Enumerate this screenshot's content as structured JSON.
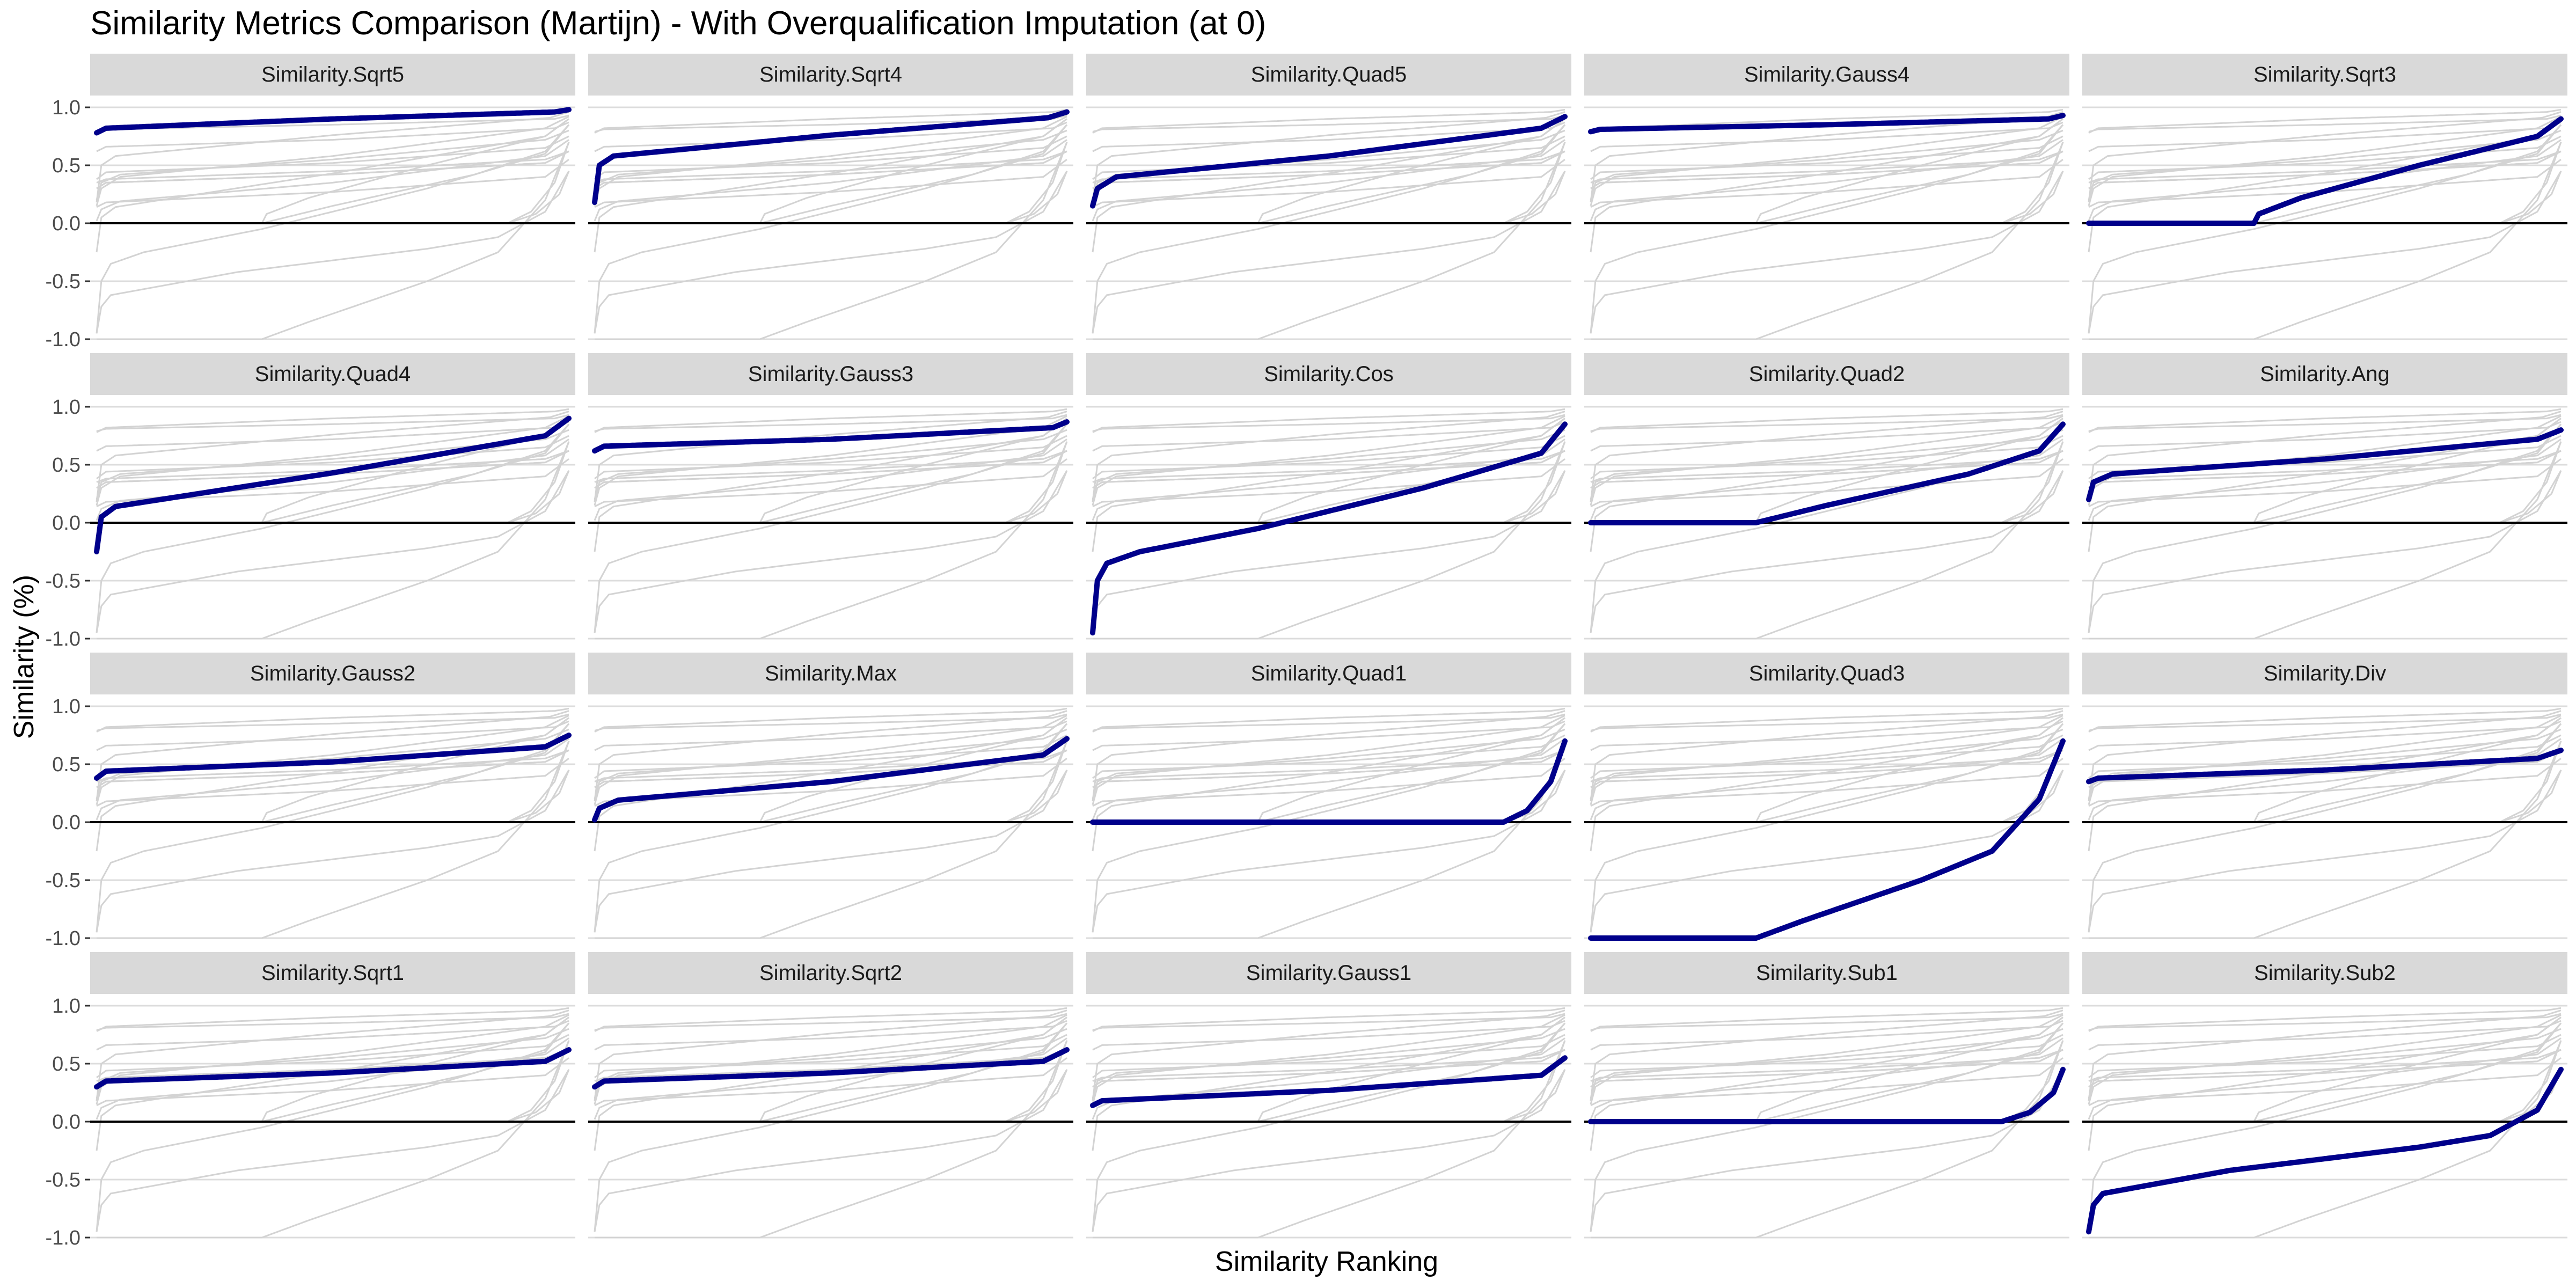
{
  "chart_data": {
    "type": "line",
    "title": "Similarity Metrics Comparison (Martijn) - With Overqualification Imputation (at 0)",
    "xlabel": "Similarity Ranking",
    "ylabel": "Similarity (%)",
    "ylim": [
      -1.0,
      1.0
    ],
    "yticks": [
      "1.0",
      "0.5",
      "0.0",
      "-0.5",
      "-1.0"
    ],
    "x_range": [
      0,
      100
    ],
    "grid": "horizontal only",
    "highlight_color": "#00008B",
    "background_color": "#D3D3D3",
    "zero_line_color": "#000000",
    "panels": [
      {
        "name": "Similarity.Sqrt5",
        "curve": [
          [
            0,
            0.78
          ],
          [
            2,
            0.82
          ],
          [
            50,
            0.9
          ],
          [
            97,
            0.96
          ],
          [
            100,
            0.98
          ]
        ]
      },
      {
        "name": "Similarity.Sqrt4",
        "curve": [
          [
            0,
            0.18
          ],
          [
            1,
            0.5
          ],
          [
            4,
            0.58
          ],
          [
            50,
            0.76
          ],
          [
            96,
            0.91
          ],
          [
            100,
            0.96
          ]
        ]
      },
      {
        "name": "Similarity.Quad5",
        "curve": [
          [
            0,
            0.15
          ],
          [
            1,
            0.3
          ],
          [
            5,
            0.4
          ],
          [
            50,
            0.58
          ],
          [
            95,
            0.82
          ],
          [
            100,
            0.92
          ]
        ]
      },
      {
        "name": "Similarity.Gauss4",
        "curve": [
          [
            0,
            0.79
          ],
          [
            2,
            0.81
          ],
          [
            50,
            0.85
          ],
          [
            97,
            0.9
          ],
          [
            100,
            0.93
          ]
        ]
      },
      {
        "name": "Similarity.Sqrt3",
        "curve": [
          [
            0,
            0.0
          ],
          [
            35,
            0.0
          ],
          [
            36,
            0.08
          ],
          [
            45,
            0.22
          ],
          [
            70,
            0.5
          ],
          [
            95,
            0.75
          ],
          [
            100,
            0.9
          ]
        ]
      },
      {
        "name": "Similarity.Quad4",
        "curve": [
          [
            0,
            -0.25
          ],
          [
            1,
            0.05
          ],
          [
            4,
            0.14
          ],
          [
            50,
            0.43
          ],
          [
            95,
            0.75
          ],
          [
            100,
            0.9
          ]
        ]
      },
      {
        "name": "Similarity.Gauss3",
        "curve": [
          [
            0,
            0.62
          ],
          [
            2,
            0.66
          ],
          [
            50,
            0.72
          ],
          [
            97,
            0.82
          ],
          [
            100,
            0.87
          ]
        ]
      },
      {
        "name": "Similarity.Cos",
        "curve": [
          [
            0,
            -0.95
          ],
          [
            1,
            -0.5
          ],
          [
            3,
            -0.35
          ],
          [
            10,
            -0.25
          ],
          [
            35,
            -0.05
          ],
          [
            70,
            0.3
          ],
          [
            95,
            0.6
          ],
          [
            100,
            0.85
          ]
        ]
      },
      {
        "name": "Similarity.Quad2",
        "curve": [
          [
            0,
            0.0
          ],
          [
            35,
            0.0
          ],
          [
            50,
            0.15
          ],
          [
            80,
            0.42
          ],
          [
            95,
            0.62
          ],
          [
            100,
            0.85
          ]
        ]
      },
      {
        "name": "Similarity.Ang",
        "curve": [
          [
            0,
            0.2
          ],
          [
            1,
            0.35
          ],
          [
            5,
            0.42
          ],
          [
            50,
            0.55
          ],
          [
            95,
            0.72
          ],
          [
            100,
            0.8
          ]
        ]
      },
      {
        "name": "Similarity.Gauss2",
        "curve": [
          [
            0,
            0.38
          ],
          [
            2,
            0.44
          ],
          [
            50,
            0.52
          ],
          [
            95,
            0.65
          ],
          [
            100,
            0.75
          ]
        ]
      },
      {
        "name": "Similarity.Max",
        "curve": [
          [
            0,
            0.02
          ],
          [
            1,
            0.12
          ],
          [
            5,
            0.19
          ],
          [
            50,
            0.35
          ],
          [
            95,
            0.58
          ],
          [
            100,
            0.72
          ]
        ]
      },
      {
        "name": "Similarity.Quad1",
        "curve": [
          [
            0,
            0.0
          ],
          [
            87,
            0.0
          ],
          [
            92,
            0.1
          ],
          [
            97,
            0.35
          ],
          [
            100,
            0.7
          ]
        ]
      },
      {
        "name": "Similarity.Quad3",
        "curve": [
          [
            0,
            -1.0
          ],
          [
            35,
            -1.0
          ],
          [
            45,
            -0.85
          ],
          [
            70,
            -0.5
          ],
          [
            85,
            -0.25
          ],
          [
            95,
            0.2
          ],
          [
            100,
            0.7
          ]
        ]
      },
      {
        "name": "Similarity.Div",
        "curve": [
          [
            0,
            0.35
          ],
          [
            2,
            0.38
          ],
          [
            50,
            0.45
          ],
          [
            95,
            0.55
          ],
          [
            100,
            0.62
          ]
        ]
      },
      {
        "name": "Similarity.Sqrt1",
        "curve": [
          [
            0,
            0.3
          ],
          [
            2,
            0.35
          ],
          [
            50,
            0.42
          ],
          [
            95,
            0.52
          ],
          [
            100,
            0.62
          ]
        ]
      },
      {
        "name": "Similarity.Sqrt2",
        "curve": [
          [
            0,
            0.3
          ],
          [
            2,
            0.35
          ],
          [
            50,
            0.42
          ],
          [
            95,
            0.52
          ],
          [
            100,
            0.62
          ]
        ]
      },
      {
        "name": "Similarity.Gauss1",
        "curve": [
          [
            0,
            0.14
          ],
          [
            2,
            0.18
          ],
          [
            50,
            0.27
          ],
          [
            95,
            0.4
          ],
          [
            100,
            0.55
          ]
        ]
      },
      {
        "name": "Similarity.Sub1",
        "curve": [
          [
            0,
            0.0
          ],
          [
            87,
            0.0
          ],
          [
            93,
            0.08
          ],
          [
            98,
            0.25
          ],
          [
            100,
            0.45
          ]
        ]
      },
      {
        "name": "Similarity.Sub2",
        "curve": [
          [
            0,
            -0.95
          ],
          [
            1,
            -0.72
          ],
          [
            3,
            -0.62
          ],
          [
            30,
            -0.42
          ],
          [
            70,
            -0.22
          ],
          [
            85,
            -0.12
          ],
          [
            95,
            0.1
          ],
          [
            100,
            0.45
          ]
        ]
      }
    ]
  }
}
